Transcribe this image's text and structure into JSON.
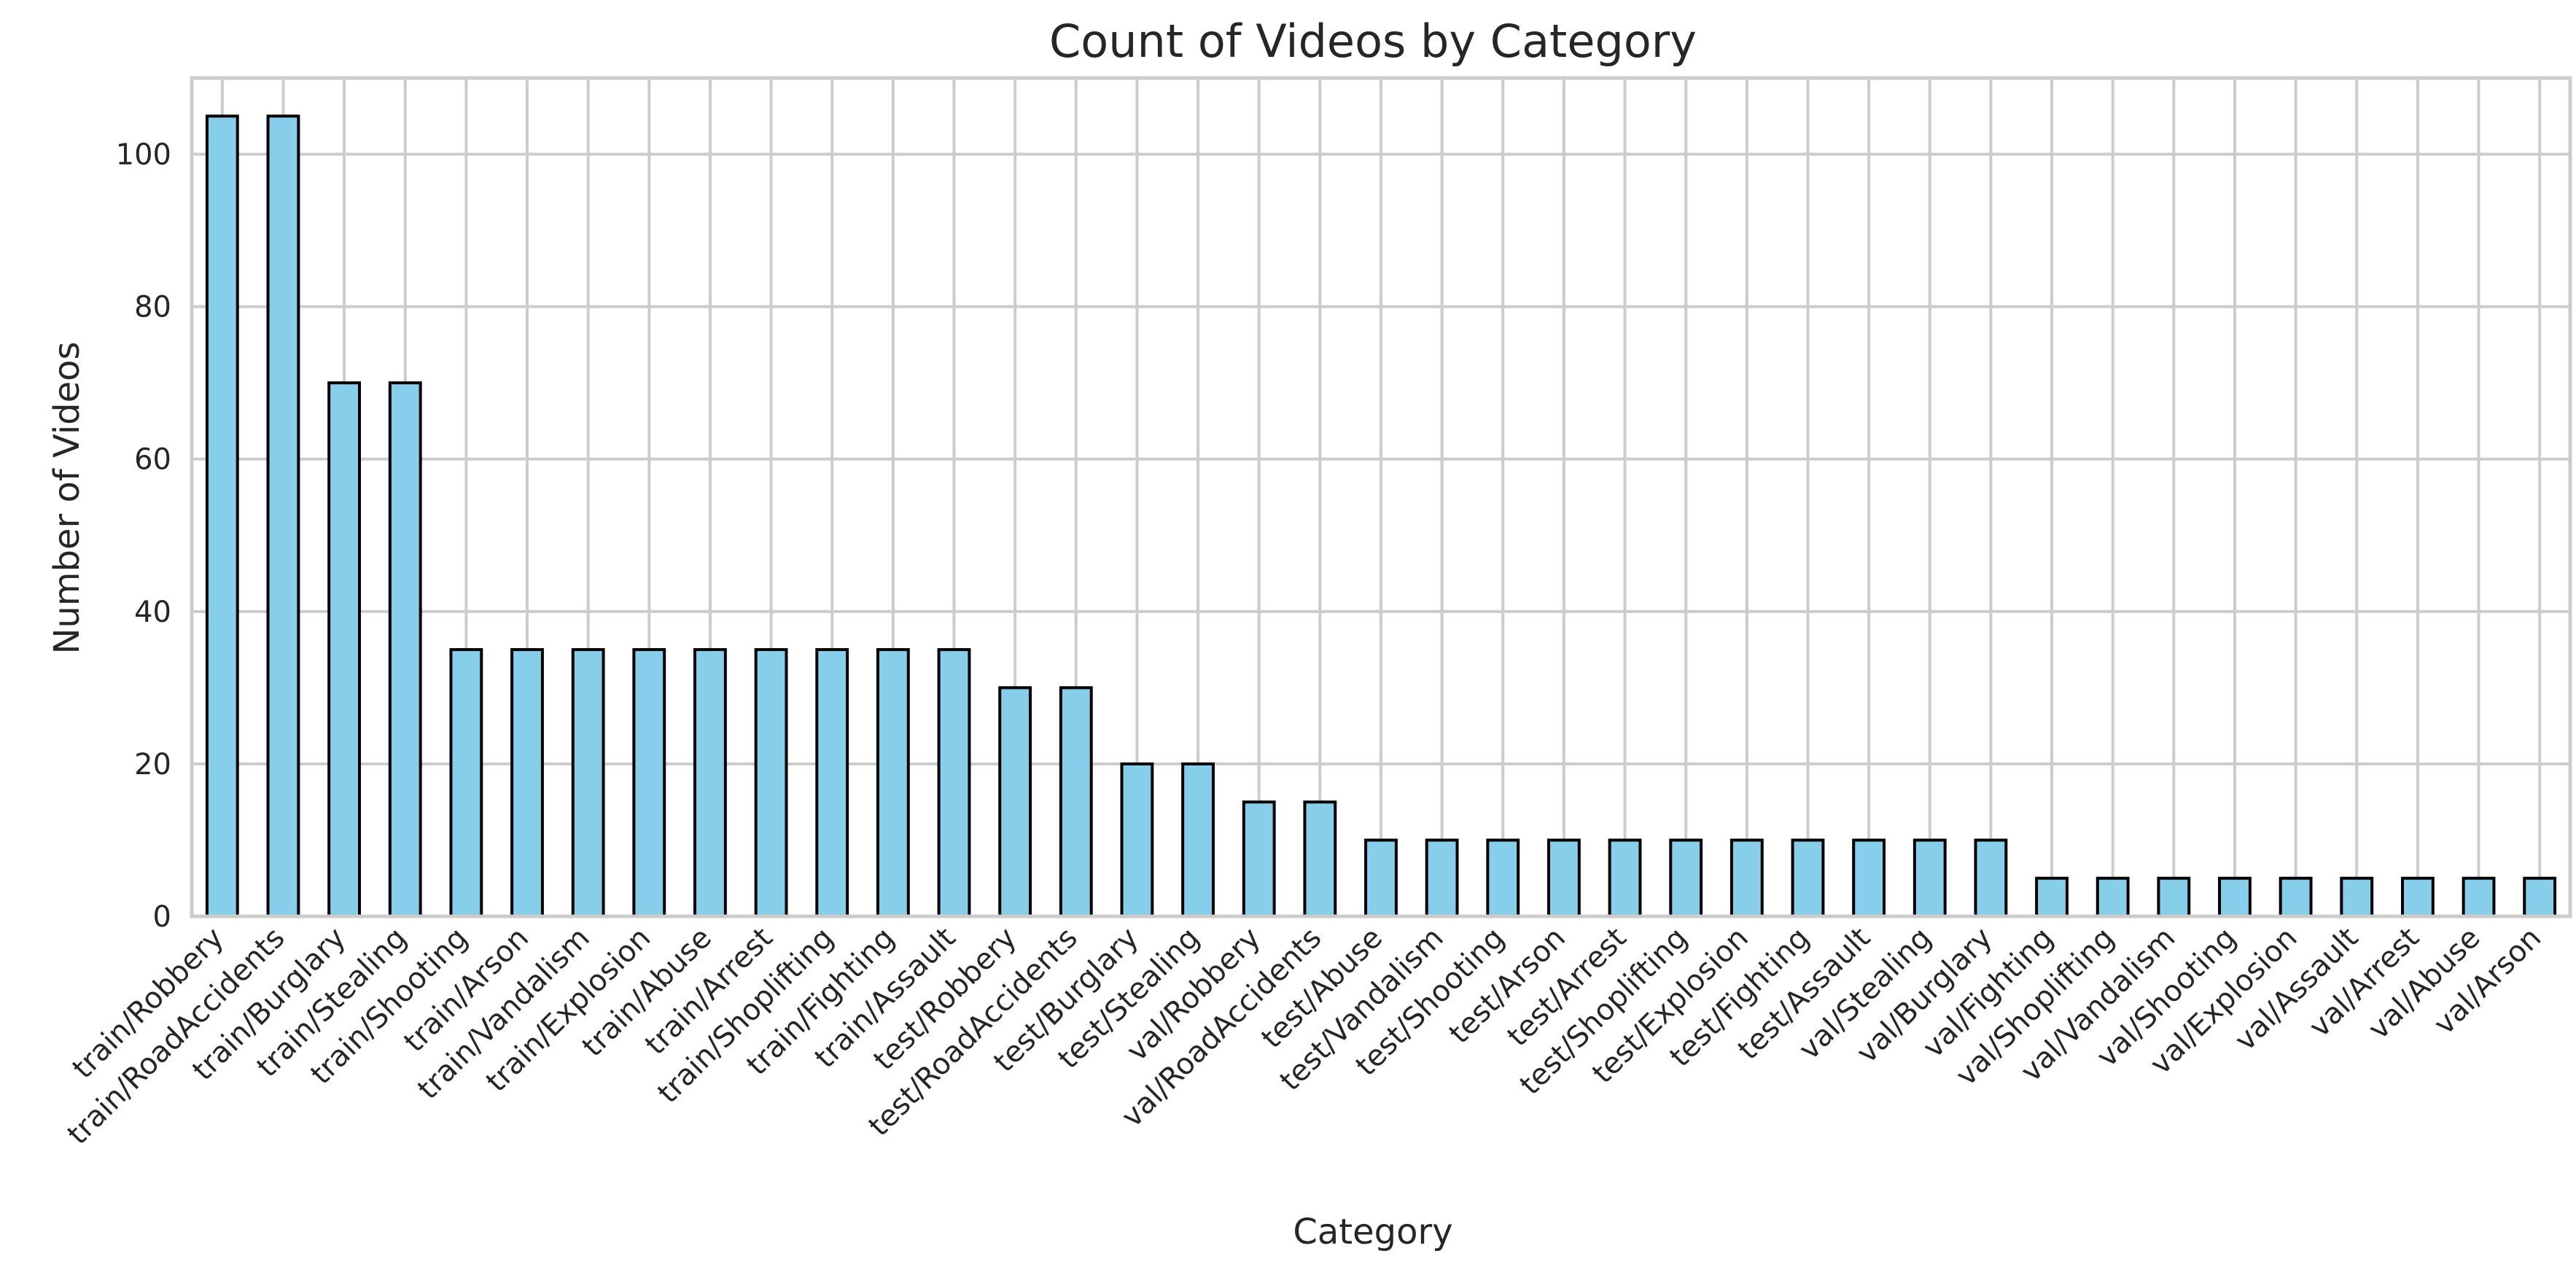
{
  "chart_data": {
    "type": "bar",
    "title": "Count of Videos by Category",
    "xlabel": "Category",
    "ylabel": "Number of Videos",
    "ylim": [
      0,
      110
    ],
    "yticks": [
      0,
      20,
      40,
      60,
      80,
      100
    ],
    "grid": true,
    "bar_color": "#87ceeb",
    "bar_edge_color": "#000000",
    "grid_color": "#cccccc",
    "categories": [
      "train/Robbery",
      "train/RoadAccidents",
      "train/Burglary",
      "train/Stealing",
      "train/Shooting",
      "train/Arson",
      "train/Vandalism",
      "train/Explosion",
      "train/Abuse",
      "train/Arrest",
      "train/Shoplifting",
      "train/Fighting",
      "train/Assault",
      "test/Robbery",
      "test/RoadAccidents",
      "test/Burglary",
      "test/Stealing",
      "val/Robbery",
      "val/RoadAccidents",
      "test/Abuse",
      "test/Vandalism",
      "test/Shooting",
      "test/Arson",
      "test/Arrest",
      "test/Shoplifting",
      "test/Explosion",
      "test/Fighting",
      "test/Assault",
      "val/Stealing",
      "val/Burglary",
      "val/Fighting",
      "val/Shoplifting",
      "val/Vandalism",
      "val/Shooting",
      "val/Explosion",
      "val/Assault",
      "val/Arrest",
      "val/Abuse",
      "val/Arson"
    ],
    "values": [
      105,
      105,
      70,
      70,
      35,
      35,
      35,
      35,
      35,
      35,
      35,
      35,
      35,
      30,
      30,
      20,
      20,
      15,
      15,
      10,
      10,
      10,
      10,
      10,
      10,
      10,
      10,
      10,
      10,
      10,
      5,
      5,
      5,
      5,
      5,
      5,
      5,
      5,
      5
    ]
  }
}
